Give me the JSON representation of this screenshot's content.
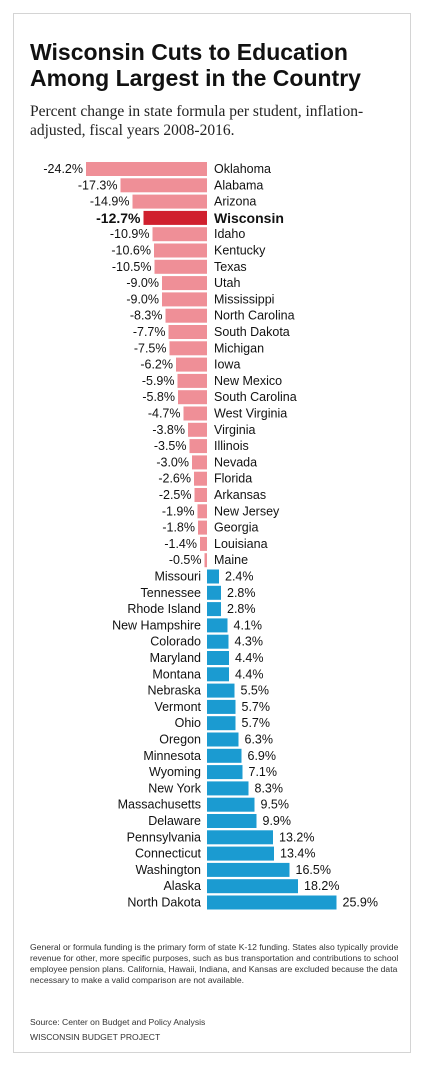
{
  "title": "Wisconsin Cuts to Education Among Largest in the Country",
  "subtitle": "Percent change in state formula per student, inflation-adjusted, fiscal years 2008-2016.",
  "note": "General or formula funding is the primary form of state K-12 funding. States also typically provide revenue for other, more specific purposes, such as bus transportation and contributions to school employee pension plans. California, Hawaii, Indiana, and Kansas are excluded because the data necessary to make a valid comparison are not available.",
  "source": "Source: Center on Budget and Policy Analysis",
  "organization": "WISCONSIN BUDGET PROJECT",
  "colors": {
    "negative": "#ef8f97",
    "highlight": "#d0202e",
    "positive": "#1b9bd1"
  },
  "chart_data": {
    "type": "bar",
    "orientation": "horizontal",
    "highlight": "Wisconsin",
    "value_suffix": "%",
    "categories": [
      "Oklahoma",
      "Alabama",
      "Arizona",
      "Wisconsin",
      "Idaho",
      "Kentucky",
      "Texas",
      "Utah",
      "Mississippi",
      "North Carolina",
      "South Dakota",
      "Michigan",
      "Iowa",
      "New Mexico",
      "South Carolina",
      "West Virginia",
      "Virginia",
      "Illinois",
      "Nevada",
      "Florida",
      "Arkansas",
      "New Jersey",
      "Georgia",
      "Louisiana",
      "Maine",
      "Missouri",
      "Tennessee",
      "Rhode Island",
      "New Hampshire",
      "Colorado",
      "Maryland",
      "Montana",
      "Nebraska",
      "Vermont",
      "Ohio",
      "Oregon",
      "Minnesota",
      "Wyoming",
      "New York",
      "Massachusetts",
      "Delaware",
      "Pennsylvania",
      "Connecticut",
      "Washington",
      "Alaska",
      "North Dakota"
    ],
    "values": [
      -24.2,
      -17.3,
      -14.9,
      -12.7,
      -10.9,
      -10.6,
      -10.5,
      -9.0,
      -9.0,
      -8.3,
      -7.7,
      -7.5,
      -6.2,
      -5.9,
      -5.8,
      -4.7,
      -3.8,
      -3.5,
      -3.0,
      -2.6,
      -2.5,
      -1.9,
      -1.8,
      -1.4,
      -0.5,
      2.4,
      2.8,
      2.8,
      4.1,
      4.3,
      4.4,
      4.4,
      5.5,
      5.7,
      5.7,
      6.3,
      6.9,
      7.1,
      8.3,
      9.5,
      9.9,
      13.2,
      13.4,
      16.5,
      18.2,
      25.9
    ],
    "labels": [
      "-24.2%",
      "-17.3%",
      "-14.9%",
      "-12.7%",
      "-10.9%",
      "-10.6%",
      "-10.5%",
      "-9.0%",
      "-9.0%",
      "-8.3%",
      "-7.7%",
      "-7.5%",
      "-6.2%",
      "-5.9%",
      "-5.8%",
      "-4.7%",
      "-3.8%",
      "-3.5%",
      "-3.0%",
      "-2.6%",
      "-2.5%",
      "-1.9%",
      "-1.8%",
      "-1.4%",
      "-0.5%",
      "2.4%",
      "2.8%",
      "2.8%",
      "4.1%",
      "4.3%",
      "4.4%",
      "4.4%",
      "5.5%",
      "5.7%",
      "5.7%",
      "6.3%",
      "6.9%",
      "7.1%",
      "8.3%",
      "9.5%",
      "9.9%",
      "13.2%",
      "13.4%",
      "16.5%",
      "18.2%",
      "25.9%"
    ]
  }
}
